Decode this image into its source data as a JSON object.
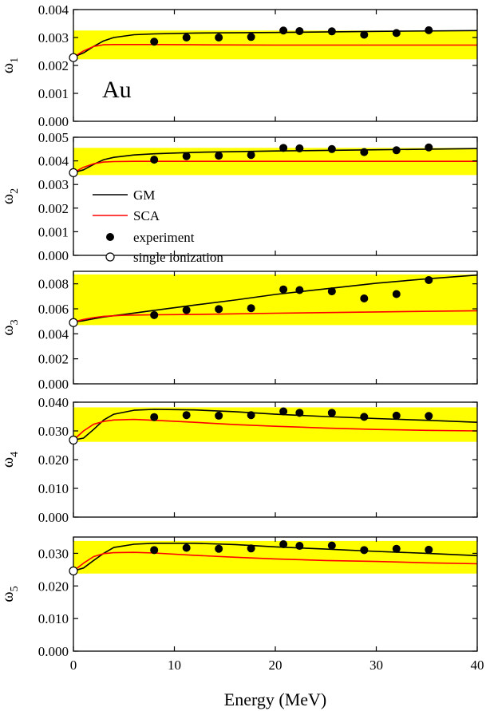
{
  "chart_data": {
    "type": "line",
    "xlabel": "Energy (MeV)",
    "xlim": [
      0,
      40
    ],
    "xticks": [
      "0",
      "10",
      "20",
      "30",
      "40"
    ],
    "annotation": "Au",
    "legend": {
      "placement": "left, inside second panel",
      "entries": [
        {
          "label": "GM",
          "marker": "line",
          "color": "#000000"
        },
        {
          "label": "SCA",
          "marker": "line",
          "color": "#ff0000"
        },
        {
          "label": "experiment",
          "marker": "filled-circle",
          "color": "#000000"
        },
        {
          "label": "single ionization",
          "marker": "open-circle",
          "color": "#000000"
        }
      ]
    },
    "colors": {
      "band": "#ffff00",
      "gm": "#000000",
      "sca": "#ff0000"
    },
    "panels": [
      {
        "ylabel": "ω",
        "ylabel_sub": "1",
        "ylim": [
          0,
          0.004
        ],
        "yticks": [
          "0.000",
          "0.001",
          "0.002",
          "0.003",
          "0.004"
        ],
        "band": [
          0.00222,
          0.00325
        ],
        "single_ionization": {
          "x": 0,
          "y": 0.00228
        },
        "experiment": {
          "x": [
            8.0,
            11.2,
            14.4,
            17.6,
            20.8,
            22.4,
            25.6,
            28.8,
            32.0,
            35.2
          ],
          "y": [
            0.00285,
            0.003,
            0.003,
            0.00302,
            0.00325,
            0.00323,
            0.00322,
            0.0031,
            0.00316,
            0.00326
          ]
        },
        "series": [
          {
            "name": "GM",
            "x": [
              0,
              1,
              2,
              3,
              4,
              6,
              8,
              12,
              20,
              30,
              40
            ],
            "y": [
              0.0023,
              0.00245,
              0.00268,
              0.00288,
              0.003,
              0.0031,
              0.00313,
              0.00316,
              0.00318,
              0.00322,
              0.00325
            ]
          },
          {
            "name": "SCA",
            "x": [
              0,
              1,
              2,
              3,
              4,
              6,
              8,
              12,
              20,
              30,
              40
            ],
            "y": [
              0.0023,
              0.00252,
              0.00268,
              0.00274,
              0.00275,
              0.00275,
              0.00275,
              0.00274,
              0.00273,
              0.00273,
              0.00273
            ]
          }
        ]
      },
      {
        "ylabel": "ω",
        "ylabel_sub": "2",
        "ylim": [
          0,
          0.005
        ],
        "yticks": [
          "0.000",
          "0.001",
          "0.002",
          "0.003",
          "0.004",
          "0.005"
        ],
        "band": [
          0.0034,
          0.00455
        ],
        "single_ionization": {
          "x": 0,
          "y": 0.0035
        },
        "experiment": {
          "x": [
            8.0,
            11.2,
            14.4,
            17.6,
            20.8,
            22.4,
            25.6,
            28.8,
            32.0,
            35.2
          ],
          "y": [
            0.00405,
            0.0042,
            0.00422,
            0.00425,
            0.00455,
            0.00453,
            0.0045,
            0.00437,
            0.00445,
            0.00457
          ]
        },
        "series": [
          {
            "name": "GM",
            "x": [
              0,
              1,
              2,
              3,
              4,
              6,
              8,
              12,
              20,
              30,
              40
            ],
            "y": [
              0.0035,
              0.00362,
              0.00385,
              0.00405,
              0.00415,
              0.00425,
              0.0043,
              0.00436,
              0.00442,
              0.00447,
              0.00452
            ]
          },
          {
            "name": "SCA",
            "x": [
              0,
              1,
              2,
              3,
              4,
              6,
              8,
              12,
              20,
              30,
              40
            ],
            "y": [
              0.0035,
              0.00373,
              0.00388,
              0.00395,
              0.00397,
              0.00398,
              0.00398,
              0.00398,
              0.00398,
              0.00398,
              0.00398
            ]
          }
        ]
      },
      {
        "ylabel": "ω",
        "ylabel_sub": "3",
        "ylim": [
          0,
          0.009
        ],
        "yticks": [
          "0.000",
          "0.002",
          "0.004",
          "0.006",
          "0.008"
        ],
        "band": [
          0.0047,
          0.00875
        ],
        "single_ionization": {
          "x": 0,
          "y": 0.0049
        },
        "experiment": {
          "x": [
            8.0,
            11.2,
            14.4,
            17.6,
            20.8,
            22.4,
            25.6,
            28.8,
            32.0,
            35.2
          ],
          "y": [
            0.0055,
            0.0059,
            0.00598,
            0.00605,
            0.00755,
            0.0075,
            0.0074,
            0.00683,
            0.00718,
            0.0083
          ]
        },
        "series": [
          {
            "name": "GM",
            "x": [
              0,
              1,
              2,
              3,
              5,
              8,
              12,
              16,
              20,
              25,
              30,
              35,
              40
            ],
            "y": [
              0.00495,
              0.00505,
              0.0052,
              0.00535,
              0.00555,
              0.00588,
              0.0063,
              0.0067,
              0.00715,
              0.0076,
              0.00805,
              0.0084,
              0.0087
            ]
          },
          {
            "name": "SCA",
            "x": [
              0,
              1,
              2,
              3,
              5,
              8,
              12,
              20,
              30,
              40
            ],
            "y": [
              0.00495,
              0.00515,
              0.0053,
              0.0054,
              0.00548,
              0.00552,
              0.00555,
              0.00565,
              0.00575,
              0.00585
            ]
          }
        ]
      },
      {
        "ylabel": "ω",
        "ylabel_sub": "4",
        "ylim": [
          0,
          0.04
        ],
        "yticks": [
          "0.000",
          "0.010",
          "0.020",
          "0.030",
          "0.040"
        ],
        "band": [
          0.0262,
          0.0382
        ],
        "single_ionization": {
          "x": 0,
          "y": 0.0268
        },
        "experiment": {
          "x": [
            8.0,
            11.2,
            14.4,
            17.6,
            20.8,
            22.4,
            25.6,
            28.8,
            32.0,
            35.2
          ],
          "y": [
            0.0348,
            0.0355,
            0.0353,
            0.0355,
            0.0368,
            0.0363,
            0.0363,
            0.0349,
            0.0353,
            0.0352
          ]
        },
        "series": [
          {
            "name": "GM",
            "x": [
              0,
              1,
              2,
              3,
              4,
              6,
              8,
              12,
              16,
              20,
              25,
              30,
              35,
              40
            ],
            "y": [
              0.0268,
              0.0275,
              0.0305,
              0.0338,
              0.0358,
              0.0372,
              0.0375,
              0.0373,
              0.0367,
              0.0358,
              0.035,
              0.0343,
              0.0337,
              0.033
            ]
          },
          {
            "name": "SCA",
            "x": [
              0,
              1,
              2,
              3,
              4,
              6,
              8,
              12,
              16,
              20,
              25,
              30,
              35,
              40
            ],
            "y": [
              0.0268,
              0.03,
              0.0323,
              0.0333,
              0.0338,
              0.034,
              0.0337,
              0.033,
              0.0322,
              0.0316,
              0.031,
              0.0305,
              0.0302,
              0.03
            ]
          }
        ]
      },
      {
        "ylabel": "ω",
        "ylabel_sub": "5",
        "ylim": [
          0,
          0.035
        ],
        "yticks": [
          "0.000",
          "0.010",
          "0.020",
          "0.030"
        ],
        "band": [
          0.0238,
          0.0338
        ],
        "single_ionization": {
          "x": 0,
          "y": 0.0246
        },
        "experiment": {
          "x": [
            8.0,
            11.2,
            14.4,
            17.6,
            20.8,
            22.4,
            25.6,
            28.8,
            32.0,
            35.2
          ],
          "y": [
            0.031,
            0.0317,
            0.0314,
            0.0315,
            0.0328,
            0.0323,
            0.0324,
            0.031,
            0.0314,
            0.0311
          ]
        },
        "series": [
          {
            "name": "GM",
            "x": [
              0,
              1,
              2,
              3,
              4,
              6,
              8,
              12,
              16,
              20,
              25,
              30,
              35,
              40
            ],
            "y": [
              0.0246,
              0.0255,
              0.0278,
              0.03,
              0.0318,
              0.0328,
              0.0331,
              0.0331,
              0.0327,
              0.032,
              0.0313,
              0.0306,
              0.03,
              0.0293
            ]
          },
          {
            "name": "SCA",
            "x": [
              0,
              1,
              2,
              3,
              4,
              6,
              8,
              12,
              16,
              20,
              25,
              30,
              35,
              40
            ],
            "y": [
              0.0246,
              0.027,
              0.029,
              0.0299,
              0.0302,
              0.0303,
              0.0301,
              0.0294,
              0.0288,
              0.0283,
              0.0278,
              0.0275,
              0.0271,
              0.0268
            ]
          }
        ]
      }
    ]
  }
}
